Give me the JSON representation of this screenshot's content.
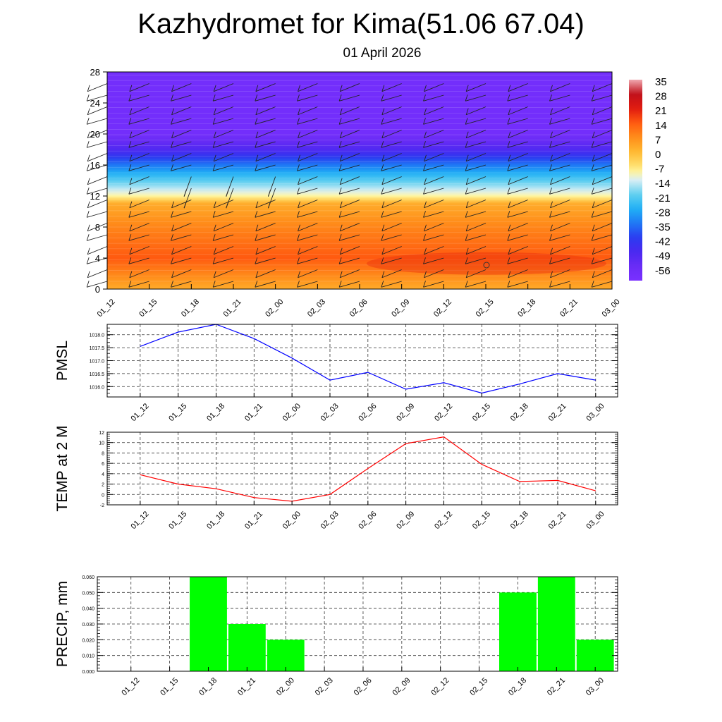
{
  "title": "Kazhydromet for Kima(51.06 67.04)",
  "subtitle": "01 April 2026",
  "chart_data": [
    {
      "type": "heatmap",
      "name": "cross-section",
      "ylim": [
        0,
        28
      ],
      "yticks": [
        "0",
        "4",
        "8",
        "12",
        "16",
        "20",
        "24",
        "28"
      ],
      "categories": [
        "01_12",
        "01_15",
        "01_18",
        "01_21",
        "02_00",
        "02_03",
        "02_06",
        "02_09",
        "02_12",
        "02_15",
        "02_18",
        "02_21",
        "03_00"
      ],
      "colorbar": {
        "labels": [
          "35",
          "28",
          "21",
          "14",
          "7",
          "0",
          "-7",
          "-14",
          "-21",
          "-28",
          "-35",
          "-42",
          "-49",
          "-56"
        ],
        "stops": [
          {
            "v": -63,
            "color": "#7a30ff"
          },
          {
            "v": -56,
            "color": "#6a2cf5"
          },
          {
            "v": -49,
            "color": "#4a28f0"
          },
          {
            "v": -42,
            "color": "#2b3cf0"
          },
          {
            "v": -35,
            "color": "#1f78f5"
          },
          {
            "v": -28,
            "color": "#20b0f5"
          },
          {
            "v": -21,
            "color": "#60d0f0"
          },
          {
            "v": -14,
            "color": "#d8eef5"
          },
          {
            "v": -10,
            "color": "#fff5a0"
          },
          {
            "v": -7,
            "color": "#ffe070"
          },
          {
            "v": 0,
            "color": "#ffb830"
          },
          {
            "v": 7,
            "color": "#ff8c1a"
          },
          {
            "v": 14,
            "color": "#ff5a10"
          },
          {
            "v": 21,
            "color": "#e01a10"
          },
          {
            "v": 28,
            "color": "#c0101a"
          },
          {
            "v": 35,
            "color": "#f0a8b0"
          }
        ]
      },
      "temperature_profile": [
        {
          "h": 0,
          "t": 2
        },
        {
          "h": 4,
          "t": 14
        },
        {
          "h": 8,
          "t": 8
        },
        {
          "h": 11,
          "t": 2
        },
        {
          "h": 12,
          "t": -10
        },
        {
          "h": 14,
          "t": -22
        },
        {
          "h": 16,
          "t": -35
        },
        {
          "h": 18,
          "t": -50
        },
        {
          "h": 20,
          "t": -60
        },
        {
          "h": 28,
          "t": -60
        }
      ]
    },
    {
      "type": "line",
      "name": "pmsl",
      "ylabel": "PMSL",
      "color": "#0000ff",
      "ylim": [
        1015.6,
        1018.4
      ],
      "yticks": [
        1016.0,
        1016.5,
        1017.0,
        1017.5,
        1018.0
      ],
      "ytick_labels": [
        "1016.0",
        "1016.5",
        "1017.0",
        "1017.5",
        "1018.0"
      ],
      "categories": [
        "01_12",
        "01_15",
        "01_18",
        "01_21",
        "02_00",
        "02_03",
        "02_06",
        "02_09",
        "02_12",
        "02_15",
        "02_18",
        "02_21",
        "03_00"
      ],
      "values": [
        1017.55,
        1018.1,
        1018.4,
        1017.85,
        1017.1,
        1016.25,
        1016.55,
        1015.9,
        1016.15,
        1015.75,
        1016.1,
        1016.5,
        1016.25
      ]
    },
    {
      "type": "line",
      "name": "temp2m",
      "ylabel": "TEMP at 2 M",
      "color": "#ff0000",
      "ylim": [
        -2,
        12
      ],
      "yticks": [
        -2,
        0,
        2,
        4,
        6,
        8,
        10,
        12
      ],
      "ytick_labels": [
        "-2",
        "0",
        "2",
        "4",
        "6",
        "8",
        "10",
        "12"
      ],
      "categories": [
        "01_12",
        "01_15",
        "01_18",
        "01_21",
        "02_00",
        "02_03",
        "02_06",
        "02_09",
        "02_12",
        "02_15",
        "02_18",
        "02_21",
        "03_00"
      ],
      "values": [
        3.8,
        2.0,
        1.1,
        -0.6,
        -1.3,
        0.0,
        5.0,
        9.8,
        11.1,
        5.8,
        2.5,
        2.7,
        0.7
      ]
    },
    {
      "type": "bar",
      "name": "precip",
      "ylabel": "PRECIP, mm",
      "color": "#00ff00",
      "ylim": [
        0,
        0.06
      ],
      "yticks": [
        0,
        0.01,
        0.02,
        0.03,
        0.04,
        0.05,
        0.06
      ],
      "ytick_labels": [
        "0.000",
        "0.010",
        "0.020",
        "0.030",
        "0.040",
        "0.050",
        "0.060"
      ],
      "categories": [
        "01_12",
        "01_15",
        "01_18",
        "01_21",
        "02_00",
        "02_03",
        "02_06",
        "02_09",
        "02_12",
        "02_15",
        "02_18",
        "02_21",
        "03_00"
      ],
      "values": [
        0,
        0,
        0.06,
        0.03,
        0.02,
        0,
        0,
        0,
        0,
        0,
        0.05,
        0.06,
        0.02
      ]
    }
  ]
}
